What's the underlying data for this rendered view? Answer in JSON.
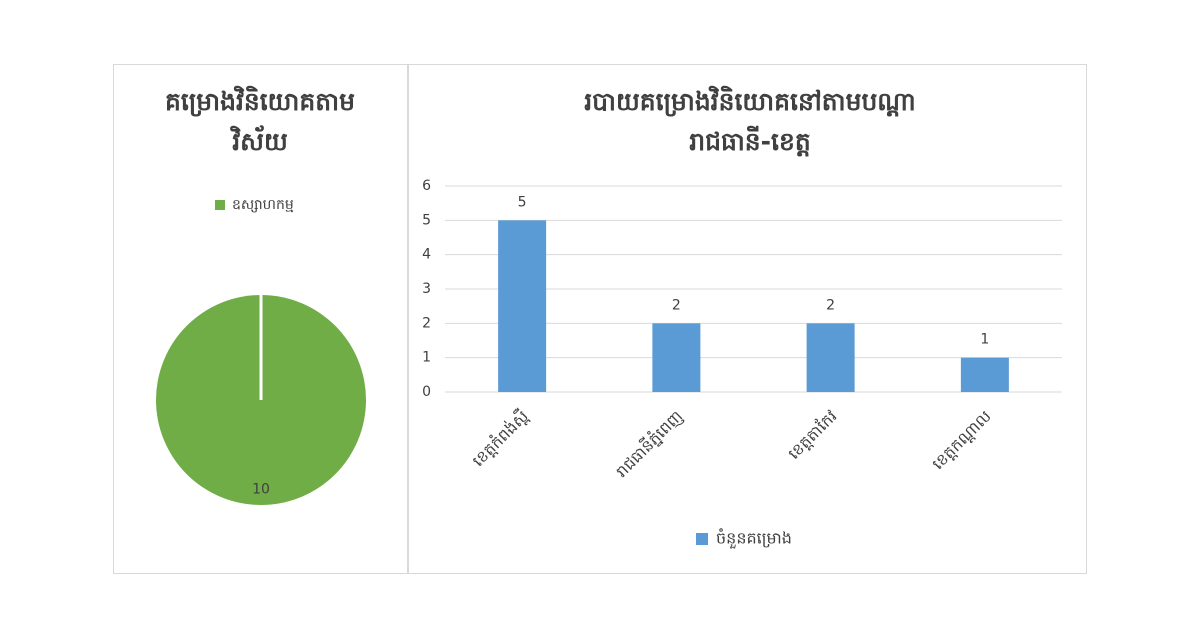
{
  "chart_data": [
    {
      "type": "pie",
      "title": "គម្រោងវិនិយោគតាមវិស័យ",
      "categories": [
        "ឧស្សាហកម្ម"
      ],
      "values": [
        10
      ],
      "colors": [
        "#70ad47"
      ],
      "legend": "top"
    },
    {
      "type": "bar",
      "title": "របាយគម្រោងវិនិយោគនៅតាមបណ្ដារាជធានី-ខេត្ត",
      "categories": [
        "ខេត្តកំពង់ស្ពឺ",
        "រាជធានីភ្នំពេញ",
        "ខេត្តតាកែវ",
        "ខេត្តកណ្ដាល"
      ],
      "series": [
        {
          "name": "ចំនួនគម្រោង",
          "color": "#5b9bd5",
          "values": [
            5,
            2,
            2,
            1
          ]
        }
      ],
      "ylim": [
        0,
        6
      ],
      "yticks": [
        0,
        1,
        2,
        3,
        4,
        5,
        6
      ],
      "grid": true,
      "legend": "bottom"
    }
  ]
}
